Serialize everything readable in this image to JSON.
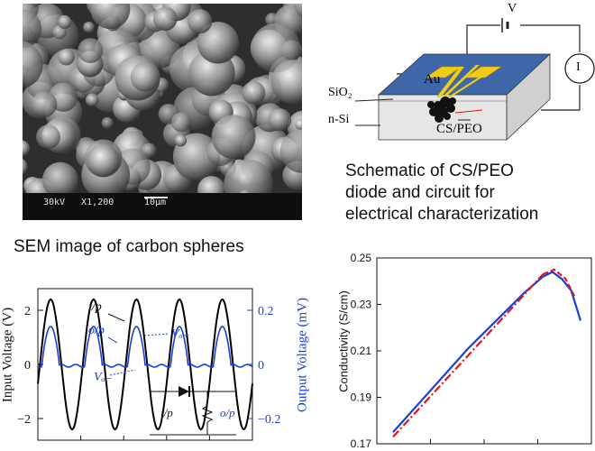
{
  "sem": {
    "caption": "SEM image of carbon spheres",
    "scale_text": "30kV   X1,200",
    "scale_bar_text": "10µm"
  },
  "schematic": {
    "caption_lines": [
      "Schematic of CS/PEO",
      "diode and  circuit for",
      "electrical characterization"
    ],
    "label_v": "V",
    "label_i": "I",
    "label_au": "Au",
    "label_sio2": "SiO₂",
    "label_nsi": "n-Si",
    "label_cspeo": "CS/PEO"
  },
  "chart_data": [
    {
      "type": "line",
      "xlabel": "",
      "ylabel": "Input Voltage (V)",
      "y2label": "Output Voltage (mV)",
      "yticks": [
        "2",
        "0",
        "−2"
      ],
      "y2ticks": [
        "0.2",
        "0",
        "−0.2"
      ],
      "ylim": [
        -2.8,
        2.8
      ],
      "y2lim": [
        -0.28,
        0.28
      ],
      "annotations": [
        "i/p",
        "o/p",
        "Vₒ₊",
        "Vₒ₋"
      ],
      "inset_labels": [
        "i/p",
        "o/p"
      ],
      "series": [
        {
          "name": "i/p",
          "color": "#000000",
          "amplitude": 2.4,
          "periods": 5
        },
        {
          "name": "o/p",
          "color": "#1a3fd6",
          "peak": 0.14,
          "floor": -0.01
        }
      ]
    },
    {
      "type": "line",
      "xlabel": "",
      "ylabel": "Conductivity (S/cm)",
      "yticks": [
        "0.25",
        "0.23",
        "0.21",
        "0.19",
        "0.17"
      ],
      "ylim": [
        0.17,
        0.25
      ],
      "series": [
        {
          "name": "",
          "color": "#1a3fd6",
          "x": [
            0,
            0.1,
            0.2,
            0.3,
            0.4,
            0.5,
            0.6,
            0.7,
            0.8,
            0.85,
            0.9,
            0.95,
            1.0
          ],
          "y": [
            0.175,
            0.184,
            0.193,
            0.202,
            0.211,
            0.219,
            0.227,
            0.235,
            0.242,
            0.244,
            0.241,
            0.236,
            0.223
          ]
        },
        {
          "name": "",
          "color": "#e0141e",
          "style": "dash-dot",
          "x": [
            0,
            0.8
          ],
          "y": [
            0.173,
            0.243
          ]
        },
        {
          "name": "",
          "color": "#e0141e",
          "style": "dashed",
          "x": [
            0.8,
            0.86,
            0.92,
            0.97
          ],
          "y": [
            0.243,
            0.245,
            0.241,
            0.233
          ]
        }
      ]
    }
  ]
}
